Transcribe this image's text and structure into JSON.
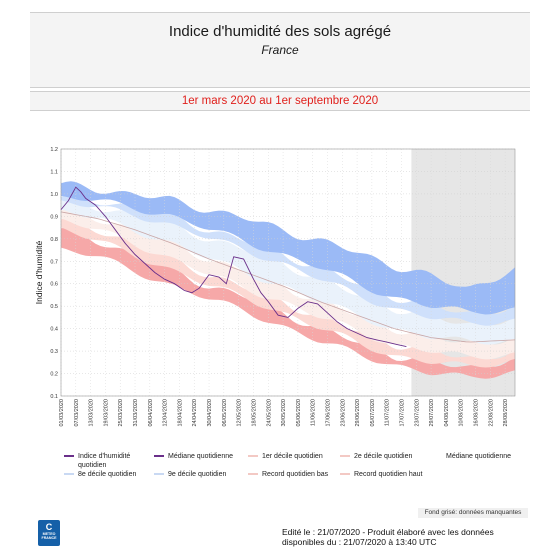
{
  "header": {
    "title": "Indice d'humidité des sols agrégé",
    "subtitle": "France",
    "period": "1er mars 2020 au 1er septembre 2020"
  },
  "chart_data": {
    "type": "area",
    "ylabel": "Indice d'humidité",
    "ylim": [
      0.1,
      1.2
    ],
    "yticks": [
      "0.1",
      "0.2",
      "0.3",
      "0.4",
      "0.5",
      "0.6",
      "0.7",
      "0.8",
      "0.9",
      "1.0",
      "1.1",
      "1.2"
    ],
    "grid": true,
    "x_tick_labels": [
      "01/03/2020",
      "07/03/2020",
      "13/03/2020",
      "19/03/2020",
      "25/03/2020",
      "31/03/2020",
      "06/04/2020",
      "12/04/2020",
      "18/04/2020",
      "24/04/2020",
      "30/04/2020",
      "06/05/2020",
      "12/05/2020",
      "18/05/2020",
      "24/05/2020",
      "30/05/2020",
      "05/06/2020",
      "11/06/2020",
      "17/06/2020",
      "23/06/2020",
      "29/06/2020",
      "05/07/2020",
      "11/07/2020",
      "17/07/2020",
      "23/07/2020",
      "29/07/2020",
      "04/08/2020",
      "10/08/2020",
      "16/08/2020",
      "22/08/2020",
      "28/08/2020"
    ],
    "x_days": 184,
    "missing_from_day": 142,
    "climatology_days": [
      0,
      15,
      30,
      45,
      60,
      75,
      90,
      105,
      120,
      135,
      150,
      165,
      184
    ],
    "record_low": [
      0.75,
      0.72,
      0.66,
      0.59,
      0.53,
      0.48,
      0.41,
      0.34,
      0.29,
      0.24,
      0.2,
      0.18,
      0.21
    ],
    "decile_1": [
      0.84,
      0.79,
      0.73,
      0.66,
      0.59,
      0.54,
      0.47,
      0.4,
      0.34,
      0.28,
      0.25,
      0.23,
      0.26
    ],
    "decile_2": [
      0.88,
      0.84,
      0.78,
      0.71,
      0.64,
      0.58,
      0.52,
      0.45,
      0.39,
      0.33,
      0.3,
      0.27,
      0.29
    ],
    "median": [
      0.92,
      0.89,
      0.84,
      0.78,
      0.71,
      0.65,
      0.59,
      0.52,
      0.46,
      0.4,
      0.36,
      0.34,
      0.35
    ],
    "decile_8": [
      0.96,
      0.94,
      0.91,
      0.86,
      0.8,
      0.75,
      0.69,
      0.62,
      0.55,
      0.49,
      0.45,
      0.42,
      0.44
    ],
    "decile_9": [
      0.98,
      0.97,
      0.94,
      0.9,
      0.84,
      0.79,
      0.73,
      0.67,
      0.6,
      0.54,
      0.5,
      0.47,
      0.49
    ],
    "record_high": [
      1.04,
      1.02,
      1.0,
      0.97,
      0.93,
      0.89,
      0.84,
      0.79,
      0.74,
      0.68,
      0.63,
      0.58,
      0.66
    ],
    "series": [
      {
        "name": "Indice d'humidité quotidien",
        "color": "#6a2f8a",
        "days": [
          0,
          3,
          6,
          8,
          10,
          14,
          18,
          22,
          26,
          30,
          34,
          38,
          42,
          46,
          50,
          53,
          56,
          60,
          64,
          67,
          70,
          74,
          78,
          81,
          84,
          88,
          92,
          96,
          100,
          104,
          108,
          112,
          116,
          120,
          124,
          128,
          132,
          136,
          140
        ],
        "values": [
          0.93,
          0.97,
          1.03,
          1.01,
          0.98,
          0.95,
          0.9,
          0.84,
          0.78,
          0.73,
          0.69,
          0.65,
          0.62,
          0.6,
          0.57,
          0.56,
          0.58,
          0.64,
          0.63,
          0.6,
          0.72,
          0.71,
          0.62,
          0.56,
          0.52,
          0.46,
          0.45,
          0.49,
          0.52,
          0.51,
          0.47,
          0.43,
          0.4,
          0.38,
          0.36,
          0.35,
          0.34,
          0.33,
          0.32
        ]
      }
    ],
    "colors": {
      "record_band": "#f6a8a8",
      "low_band": "#fcd9d3",
      "mid_low_band": "#fbeeea",
      "mid_high_band": "#eaf2fb",
      "high_band": "#cfe0fb",
      "top_band": "#9bbaf6",
      "median_line": "#c9a6a6",
      "missing_area": "#e6e6e6"
    },
    "legend": [
      {
        "label": "Indice d'humidité quotidien",
        "color": "#6a2f8a"
      },
      {
        "label": "Médiane quotidienne",
        "color": "#6a2f8a"
      },
      {
        "label": "1er décile quotidien",
        "color": "#f3c9c4"
      },
      {
        "label": "2e décile quotidien",
        "color": "#f3c9c4"
      },
      {
        "label": "Médiane quotidienne",
        "color": "#ffffff"
      },
      {
        "label": "8e décile quotidien",
        "color": "#c9d9f3"
      },
      {
        "label": "9e décile quotidien",
        "color": "#c9d9f3"
      },
      {
        "label": "Record quotidien bas",
        "color": "#f3c9c4"
      },
      {
        "label": "Record quotidien haut",
        "color": "#f3c9c4"
      }
    ]
  },
  "footer": {
    "note": "Fond grisé: données manquantes",
    "edit_line1": "Edité le : 21/07/2020 - Produit élaboré avec les données",
    "edit_line2": "disponibles du : 21/07/2020 à 13:40 UTC",
    "logo_text": "METEO FRANCE"
  }
}
